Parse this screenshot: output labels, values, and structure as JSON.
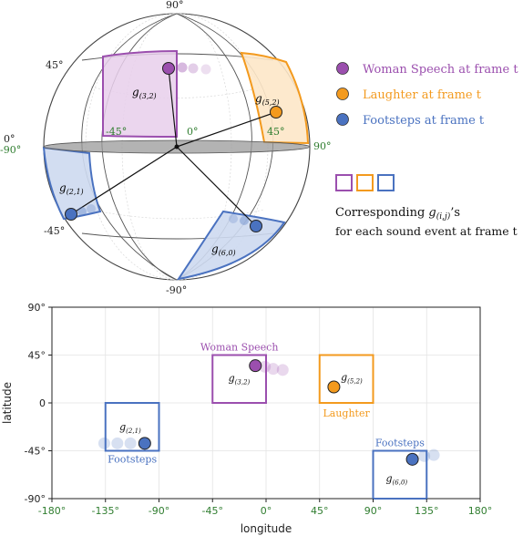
{
  "colors": {
    "speech": "#9b4fae",
    "speech_fill": "#e8cfeb",
    "laughter": "#f39a1e",
    "laughter_fill": "#fde7c8",
    "footsteps": "#4a72c0",
    "footsteps_fill": "#cdd9ef",
    "tick_green": "#2f7d2f"
  },
  "sphere": {
    "lat_labels": {
      "top": "90°",
      "upper": "45°",
      "equator": "0°",
      "lower": "-45°",
      "bottom": "-90°"
    },
    "lon_labels": {
      "west": "-90°",
      "m45": "-45°",
      "zero": "0°",
      "p45": "45°",
      "east": "90°"
    },
    "cell_labels": {
      "speech": "g",
      "speech_sub": "(3,2)",
      "laughter": "g",
      "laughter_sub": "(5,2)",
      "footsteps_left": "g",
      "footsteps_left_sub": "(2,1)",
      "footsteps_bottom": "g",
      "footsteps_bottom_sub": "(6,0)"
    }
  },
  "legend": {
    "items": [
      {
        "label": "Woman Speech at frame t"
      },
      {
        "label": "Laughter at frame t"
      },
      {
        "label": "Footsteps at frame t"
      }
    ],
    "caption_line1_prefix": "Corresponding ",
    "caption_g": "g",
    "caption_sub": "(i,j)",
    "caption_line1_suffix": "’s",
    "caption_line2": "for each sound event at frame t"
  },
  "chart_data": {
    "type": "scatter",
    "xlabel": "longitude",
    "ylabel": "latitude",
    "xlim": [
      -180,
      180
    ],
    "ylim": [
      -90,
      90
    ],
    "xticks": [
      "-180°",
      "-135°",
      "-90°",
      "-45°",
      "0°",
      "45°",
      "90°",
      "135°",
      "180°"
    ],
    "yticks": [
      "90°",
      "45°",
      "0",
      "-45°",
      "-90°"
    ],
    "grid": true,
    "boxes": [
      {
        "event": "Woman Speech",
        "lon": [
          -45,
          0
        ],
        "lat": [
          0,
          45
        ],
        "label": "g",
        "sub": "(3,2)",
        "caption": "Woman Speech"
      },
      {
        "event": "Laughter",
        "lon": [
          45,
          90
        ],
        "lat": [
          0,
          45
        ],
        "label": "g",
        "sub": "(5,2)",
        "caption": "Laughter"
      },
      {
        "event": "Footsteps",
        "lon": [
          -135,
          -90
        ],
        "lat": [
          -45,
          0
        ],
        "label": "g",
        "sub": "(2,1)",
        "caption": "Footsteps"
      },
      {
        "event": "Footsteps",
        "lon": [
          90,
          135
        ],
        "lat": [
          -90,
          -45
        ],
        "label": "g",
        "sub": "(6,0)",
        "caption": "Footsteps"
      }
    ],
    "points": [
      {
        "event": "Woman Speech",
        "lon": -9,
        "lat": 35,
        "current": true
      },
      {
        "event": "Woman Speech",
        "lon": -1,
        "lat": 34,
        "current": false
      },
      {
        "event": "Woman Speech",
        "lon": 6,
        "lat": 32,
        "current": false
      },
      {
        "event": "Woman Speech",
        "lon": 14,
        "lat": 31,
        "current": false
      },
      {
        "event": "Laughter",
        "lon": 57,
        "lat": 15,
        "current": true
      },
      {
        "event": "Footsteps",
        "lon": -102,
        "lat": -38,
        "current": true
      },
      {
        "event": "Footsteps",
        "lon": -114,
        "lat": -38,
        "current": false
      },
      {
        "event": "Footsteps",
        "lon": -125,
        "lat": -38,
        "current": false
      },
      {
        "event": "Footsteps",
        "lon": -136,
        "lat": -38,
        "current": false
      },
      {
        "event": "Footsteps",
        "lon": 123,
        "lat": -53,
        "current": true
      },
      {
        "event": "Footsteps",
        "lon": 133,
        "lat": -50,
        "current": false
      },
      {
        "event": "Footsteps",
        "lon": 141,
        "lat": -49,
        "current": false
      }
    ]
  }
}
